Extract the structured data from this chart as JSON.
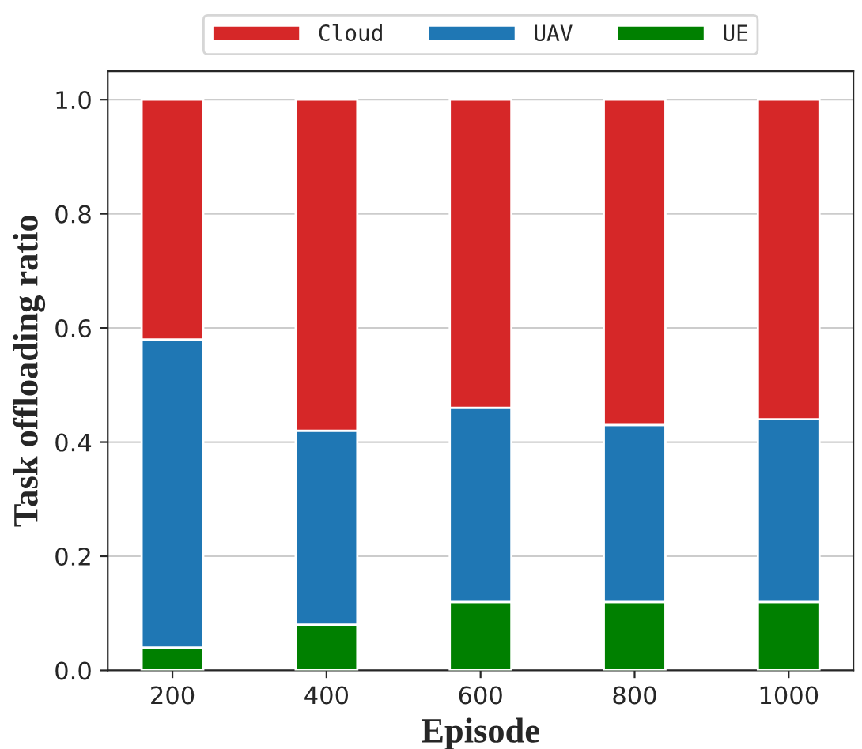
{
  "chart_data": {
    "type": "bar",
    "stacked": true,
    "xlabel": "Episode",
    "ylabel": "Task offloading ratio",
    "categories": [
      "200",
      "400",
      "600",
      "800",
      "1000"
    ],
    "series": [
      {
        "name": "UE",
        "color": "#008000",
        "values": [
          0.04,
          0.08,
          0.12,
          0.12,
          0.12
        ]
      },
      {
        "name": "UAV",
        "color": "#1f77b4",
        "values": [
          0.54,
          0.34,
          0.34,
          0.31,
          0.32
        ]
      },
      {
        "name": "Cloud",
        "color": "#d62728",
        "values": [
          0.42,
          0.58,
          0.54,
          0.57,
          0.56
        ]
      }
    ],
    "ylim": [
      0,
      1.05
    ],
    "yticks": [
      {
        "value": 0,
        "label": "0.0"
      },
      {
        "value": 0.2,
        "label": "0.2"
      },
      {
        "value": 0.4,
        "label": "0.4"
      },
      {
        "value": 0.6,
        "label": "0.6"
      },
      {
        "value": 0.8,
        "label": "0.8"
      },
      {
        "value": 1,
        "label": "1.0"
      }
    ],
    "grid": "y",
    "legend": "top"
  }
}
